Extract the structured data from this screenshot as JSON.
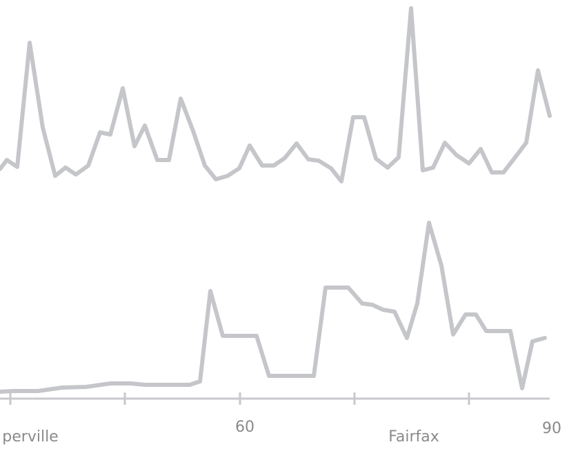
{
  "chart_data": {
    "type": "line",
    "xlim": [
      0,
      825
    ],
    "ylim": [
      0,
      667
    ],
    "xticks": [
      {
        "value": 44,
        "label": "perville"
      },
      {
        "value": 355,
        "label": "60"
      },
      {
        "value": 600,
        "label": "Fairfax"
      },
      {
        "value": 800,
        "label": "90"
      }
    ],
    "tick_marks": [
      15,
      181,
      348,
      514,
      680
    ],
    "axis_span": [
      0,
      797
    ],
    "axis_level": 89,
    "series": [
      {
        "color": "#c5c6ca",
        "x": [
          0,
          10,
          25,
          43,
          62,
          80,
          95,
          110,
          128,
          145,
          160,
          178,
          195,
          210,
          228,
          245,
          262,
          280,
          297,
          313,
          330,
          347,
          362,
          380,
          397,
          413,
          430,
          447,
          462,
          480,
          495,
          512,
          528,
          545,
          562,
          578,
          596,
          613,
          628,
          645,
          662,
          680,
          697,
          713,
          730,
          747,
          763,
          780,
          797
        ],
        "values": [
          422,
          435,
          425,
          605,
          482,
          412,
          424,
          414,
          427,
          475,
          472,
          539,
          455,
          485,
          435,
          435,
          524,
          477,
          427,
          407,
          412,
          423,
          456,
          427,
          427,
          438,
          459,
          436,
          434,
          423,
          404,
          497,
          497,
          437,
          424,
          439,
          655,
          420,
          424,
          460,
          442,
          430,
          451,
          417,
          417,
          439,
          460,
          565,
          499
        ]
      },
      {
        "color": "#c5c6ca",
        "x": [
          0,
          20,
          55,
          90,
          125,
          160,
          190,
          210,
          250,
          275,
          290,
          305,
          323,
          355,
          372,
          390,
          420,
          455,
          472,
          505,
          525,
          540,
          555,
          572,
          590,
          605,
          622,
          640,
          657,
          675,
          690,
          705,
          720,
          740,
          757,
          772,
          790
        ],
        "values": [
          99,
          100,
          100,
          105,
          106,
          111,
          111,
          109,
          109,
          109,
          114,
          245,
          180,
          180,
          180,
          122,
          122,
          122,
          250,
          250,
          227,
          225,
          218,
          215,
          177,
          227,
          344,
          282,
          182,
          211,
          211,
          187,
          187,
          187,
          104,
          172,
          177
        ]
      }
    ]
  }
}
